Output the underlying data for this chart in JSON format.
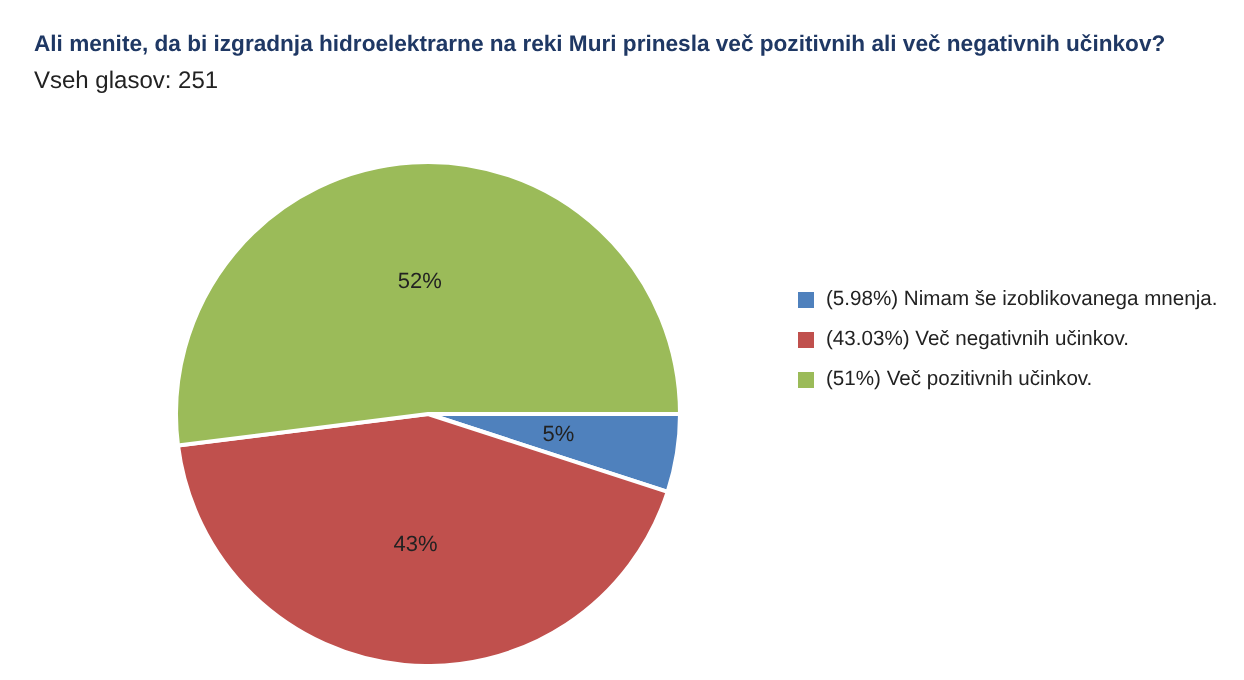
{
  "chart_data": {
    "type": "pie",
    "title": "Ali menite, da bi izgradnja hidroelektrarne na reki Muri prinesla več pozitivnih ali več negativnih učinkov?",
    "subtitle": "Vseh glasov: 251",
    "categories": [
      "(5.98%) Nimam še izoblikovanega mnenja.",
      "(43.03%) Več negativnih učinkov.",
      "(51%) Več pozitivnih učinkov."
    ],
    "values": [
      5,
      43,
      52
    ],
    "value_labels": [
      "5%",
      "43%",
      "52%"
    ],
    "colors": [
      "#4f81bd",
      "#c0504d",
      "#9bbb59"
    ],
    "legend": "right"
  }
}
